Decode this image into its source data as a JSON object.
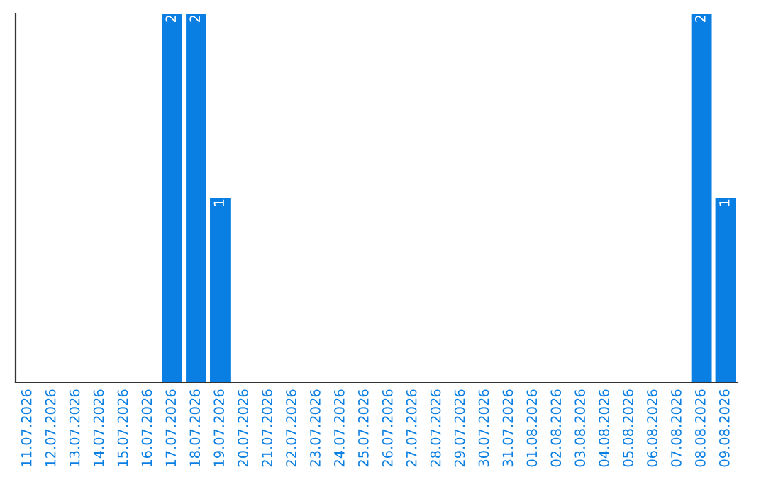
{
  "chart_data": {
    "type": "bar",
    "categories": [
      "11.07.2026",
      "12.07.2026",
      "13.07.2026",
      "14.07.2026",
      "15.07.2026",
      "16.07.2026",
      "17.07.2026",
      "18.07.2026",
      "19.07.2026",
      "20.07.2026",
      "21.07.2026",
      "22.07.2026",
      "23.07.2026",
      "24.07.2026",
      "25.07.2026",
      "26.07.2026",
      "27.07.2026",
      "28.07.2026",
      "29.07.2026",
      "30.07.2026",
      "31.07.2026",
      "01.08.2026",
      "02.08.2026",
      "03.08.2026",
      "04.08.2026",
      "05.08.2026",
      "06.08.2026",
      "07.08.2026",
      "08.08.2026",
      "09.08.2026"
    ],
    "values": [
      0,
      0,
      0,
      0,
      0,
      0,
      2,
      2,
      1,
      0,
      0,
      0,
      0,
      0,
      0,
      0,
      0,
      0,
      0,
      0,
      0,
      0,
      0,
      0,
      0,
      0,
      0,
      0,
      2,
      1
    ],
    "value_labels": [
      null,
      null,
      null,
      null,
      null,
      null,
      "2",
      "2",
      "1",
      null,
      null,
      null,
      null,
      null,
      null,
      null,
      null,
      null,
      null,
      null,
      null,
      null,
      null,
      null,
      null,
      null,
      null,
      null,
      "2",
      "1"
    ],
    "color": "#0a7fe3",
    "tick_labels": "x",
    "grid": false,
    "legend": false
  }
}
